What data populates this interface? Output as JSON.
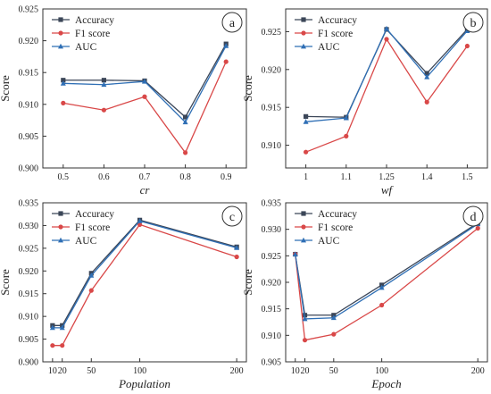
{
  "colors": {
    "accuracy": "#3b4658",
    "f1": "#d94848",
    "auc": "#2f6fb5",
    "axis": "#333333"
  },
  "chart_data": [
    {
      "type": "line",
      "panel": "a",
      "xscale": "category",
      "xlabel": "cr",
      "ylabel": "Score",
      "categories": [
        "0.5",
        "0.6",
        "0.7",
        "0.8",
        "0.9"
      ],
      "ylim": [
        0.9,
        0.925
      ],
      "yticks": [
        "0.900",
        "0.905",
        "0.910",
        "0.915",
        "0.920",
        "0.925"
      ],
      "legend_position": "top-left",
      "series": [
        {
          "name": "Accuracy",
          "marker": "square",
          "values": [
            0.9138,
            0.9138,
            0.9137,
            0.908,
            0.9195
          ]
        },
        {
          "name": "F1 score",
          "marker": "circle",
          "values": [
            0.9102,
            0.9091,
            0.9112,
            0.9024,
            0.9167
          ]
        },
        {
          "name": "AUC",
          "marker": "triangle",
          "values": [
            0.9133,
            0.9131,
            0.9136,
            0.9072,
            0.9192
          ]
        }
      ]
    },
    {
      "type": "line",
      "panel": "b",
      "xscale": "category",
      "xlabel": "wf",
      "ylabel": "Score",
      "categories": [
        "1",
        "1.1",
        "1.25",
        "1.4",
        "1.5"
      ],
      "ylim": [
        0.907,
        0.928
      ],
      "yticks": [
        "0.910",
        "0.915",
        "0.920",
        "0.925"
      ],
      "legend_position": "top-left",
      "series": [
        {
          "name": "Accuracy",
          "marker": "square",
          "values": [
            0.9138,
            0.9137,
            0.9253,
            0.9195,
            0.9253
          ]
        },
        {
          "name": "F1 score",
          "marker": "circle",
          "values": [
            0.9091,
            0.9112,
            0.924,
            0.9157,
            0.9231
          ]
        },
        {
          "name": "AUC",
          "marker": "triangle",
          "values": [
            0.9131,
            0.9136,
            0.9254,
            0.919,
            0.9251
          ]
        }
      ]
    },
    {
      "type": "line",
      "panel": "c",
      "xscale": "linear",
      "xlabel": "Population",
      "ylabel": "Score",
      "x": [
        10,
        20,
        50,
        100,
        200
      ],
      "xlim": [
        0,
        210
      ],
      "xticks": [
        "10",
        "20",
        "50",
        "100",
        "200"
      ],
      "ylim": [
        0.9,
        0.935
      ],
      "yticks": [
        "0.900",
        "0.905",
        "0.910",
        "0.915",
        "0.920",
        "0.925",
        "0.930",
        "0.935"
      ],
      "legend_position": "top-left",
      "series": [
        {
          "name": "Accuracy",
          "marker": "square",
          "values": [
            0.908,
            0.908,
            0.9195,
            0.9312,
            0.9253
          ]
        },
        {
          "name": "F1 score",
          "marker": "circle",
          "values": [
            0.9036,
            0.9036,
            0.9157,
            0.9302,
            0.9231
          ]
        },
        {
          "name": "AUC",
          "marker": "triangle",
          "values": [
            0.9075,
            0.9075,
            0.919,
            0.931,
            0.9251
          ]
        }
      ]
    },
    {
      "type": "line",
      "panel": "d",
      "xscale": "linear",
      "xlabel": "Epoch",
      "ylabel": "Score",
      "x": [
        10,
        20,
        50,
        100,
        200
      ],
      "xlim": [
        0,
        210
      ],
      "xticks": [
        "10",
        "20",
        "50",
        "100",
        "200"
      ],
      "ylim": [
        0.905,
        0.935
      ],
      "yticks": [
        "0.905",
        "0.910",
        "0.915",
        "0.920",
        "0.925",
        "0.930",
        "0.935"
      ],
      "legend_position": "top-left",
      "series": [
        {
          "name": "Accuracy",
          "marker": "square",
          "values": [
            0.9253,
            0.9138,
            0.9138,
            0.9195,
            0.9312
          ]
        },
        {
          "name": "F1 score",
          "marker": "circle",
          "values": [
            0.9253,
            0.9091,
            0.9102,
            0.9157,
            0.9302
          ]
        },
        {
          "name": "AUC",
          "marker": "triangle",
          "values": [
            0.9253,
            0.9131,
            0.9133,
            0.919,
            0.931
          ]
        }
      ]
    }
  ]
}
